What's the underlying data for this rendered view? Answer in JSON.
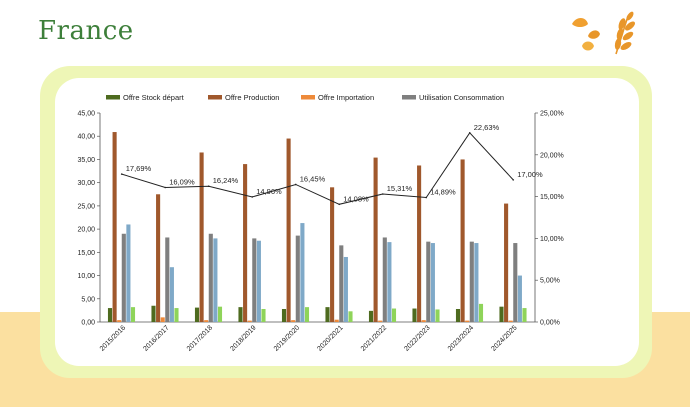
{
  "page": {
    "title": "France"
  },
  "decor": {
    "icons": [
      "leaf-icon",
      "wheat-icon"
    ],
    "colors": {
      "leaf": "#f0a030",
      "wheat": "#e8962a"
    }
  },
  "colors": {
    "title": "#3d7f3a",
    "card_border": "#eef6b6",
    "band": "#fbe0a0",
    "series": [
      "#4e6b1f",
      "#a0582c",
      "#ee8a3a",
      "#7f7f7f",
      "#7fa9c8",
      "#8fd45a"
    ],
    "line": "#222222"
  },
  "chart_data": {
    "type": "bar",
    "categories": [
      "2015/2016",
      "2016/2017",
      "2017/2018",
      "2018/2019",
      "2019/2020",
      "2020/2021",
      "2021/2022",
      "2022/2023",
      "2023/2024",
      "2024/2025"
    ],
    "series": [
      {
        "name": "Offre Stock départ",
        "values": [
          3.0,
          3.5,
          3.1,
          3.2,
          2.8,
          3.2,
          2.4,
          2.9,
          2.8,
          3.3
        ]
      },
      {
        "name": "Offre Production",
        "values": [
          40.9,
          27.5,
          36.5,
          34.0,
          39.5,
          29.0,
          35.4,
          33.7,
          35.0,
          25.5
        ]
      },
      {
        "name": "Offre Importation",
        "values": [
          0.4,
          1.0,
          0.4,
          0.3,
          0.4,
          0.5,
          0.3,
          0.4,
          0.3,
          0.3
        ]
      },
      {
        "name": "Utilisation Consommation",
        "values": [
          19.0,
          18.2,
          19.0,
          18.0,
          18.6,
          16.5,
          18.2,
          17.3,
          17.3,
          17.0
        ]
      },
      {
        "values": [
          21.0,
          11.8,
          18.0,
          17.5,
          21.3,
          14.0,
          17.2,
          17.0,
          17.0,
          10.0
        ]
      },
      {
        "values": [
          3.2,
          3.0,
          3.3,
          2.8,
          3.2,
          2.3,
          2.9,
          2.7,
          3.9,
          3.0
        ]
      }
    ],
    "line_series": {
      "axis": "right",
      "values": [
        17.69,
        16.09,
        16.24,
        14.96,
        16.45,
        14.08,
        15.31,
        14.89,
        22.63,
        17.0
      ],
      "labels": [
        "17,69%",
        "16,09%",
        "16,24%",
        "14,96%",
        "16,45%",
        "14,08%",
        "15,31%",
        "14,89%",
        "22,63%",
        "17,00%"
      ]
    },
    "y_left": {
      "min": 0,
      "max": 45,
      "ticks": [
        "0,00",
        "5,00",
        "10,00",
        "15,00",
        "20,00",
        "25,00",
        "30,00",
        "35,00",
        "40,00",
        "45,00"
      ]
    },
    "y_right": {
      "min": 0,
      "max": 25,
      "ticks": [
        "0,00%",
        "5,00%",
        "10,00%",
        "15,00%",
        "20,00%",
        "25,00%"
      ]
    },
    "legend_position": "top",
    "grid": false
  }
}
